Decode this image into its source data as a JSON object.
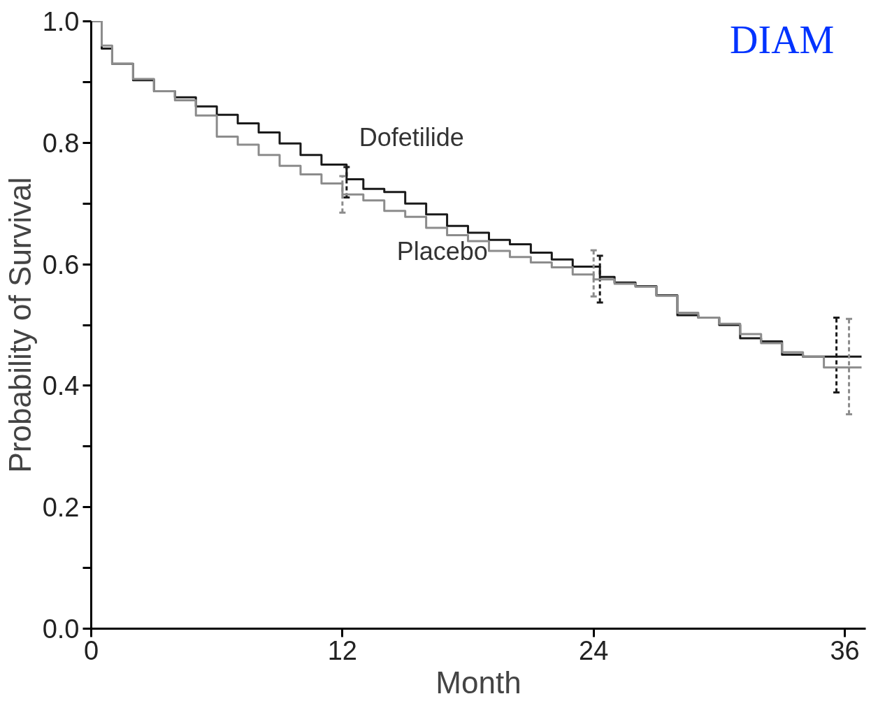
{
  "chart_data": {
    "type": "step",
    "xlabel": "Month",
    "ylabel": "Probability of Survival",
    "xlim": [
      0,
      37
    ],
    "ylim": [
      0,
      1.0
    ],
    "xticks": [
      0,
      12,
      24,
      36
    ],
    "yticks": [
      {
        "value": 0,
        "label": "0.0"
      },
      {
        "value": 0.1,
        "label": null
      },
      {
        "value": 0.2,
        "label": "0.2"
      },
      {
        "value": 0.3,
        "label": null
      },
      {
        "value": 0.4,
        "label": "0.4"
      },
      {
        "value": 0.5,
        "label": null
      },
      {
        "value": 0.6,
        "label": "0.6"
      },
      {
        "value": 0.7,
        "label": null
      },
      {
        "value": 0.8,
        "label": "0.8"
      },
      {
        "value": 0.9,
        "label": null
      },
      {
        "value": 1.0,
        "label": "1.0"
      }
    ],
    "grid": false,
    "legend": false,
    "line_style": "solid",
    "marker": "none",
    "annotations": [
      "DIAM"
    ],
    "series": [
      {
        "name": "Dofetilide",
        "color": "#1a1a1a",
        "x": [
          0,
          0.5,
          1,
          2,
          3,
          4,
          5,
          6,
          7,
          8,
          9,
          10,
          11,
          12.2,
          13,
          14,
          15,
          16,
          17,
          18,
          19,
          20,
          21,
          22,
          23,
          24.3,
          25,
          26,
          27,
          28,
          29,
          30,
          31,
          32,
          33,
          34,
          35.6,
          36.8
        ],
        "values": [
          1.0,
          0.955,
          0.93,
          0.903,
          0.885,
          0.875,
          0.86,
          0.846,
          0.832,
          0.817,
          0.799,
          0.78,
          0.764,
          0.74,
          0.724,
          0.719,
          0.7,
          0.682,
          0.663,
          0.652,
          0.64,
          0.633,
          0.619,
          0.608,
          0.596,
          0.579,
          0.57,
          0.564,
          0.549,
          0.516,
          0.512,
          0.5,
          0.478,
          0.473,
          0.451,
          0.448,
          0.448,
          0.448
        ],
        "errors": [
          null,
          null,
          null,
          null,
          null,
          null,
          null,
          null,
          null,
          null,
          null,
          null,
          null,
          [
            0.71,
            0.76
          ],
          null,
          null,
          null,
          null,
          null,
          null,
          null,
          null,
          null,
          null,
          null,
          [
            0.537,
            0.614
          ],
          null,
          null,
          null,
          null,
          null,
          null,
          null,
          null,
          null,
          null,
          [
            0.389,
            0.512
          ],
          null
        ]
      },
      {
        "name": "Placebo",
        "color": "#8c8c8c",
        "x": [
          0,
          0.5,
          1,
          2,
          3,
          4,
          5,
          6,
          7,
          8,
          9,
          10,
          11,
          12,
          13,
          14,
          15,
          16,
          17,
          18,
          19,
          20,
          21,
          22,
          23,
          24,
          25,
          26,
          27,
          28,
          29,
          30,
          31,
          32,
          33,
          34,
          35,
          36.2,
          36.8
        ],
        "values": [
          1.0,
          0.96,
          0.93,
          0.905,
          0.885,
          0.87,
          0.845,
          0.81,
          0.797,
          0.78,
          0.762,
          0.748,
          0.733,
          0.715,
          0.705,
          0.688,
          0.678,
          0.66,
          0.648,
          0.638,
          0.622,
          0.612,
          0.603,
          0.595,
          0.583,
          0.575,
          0.568,
          0.563,
          0.548,
          0.52,
          0.512,
          0.502,
          0.485,
          0.47,
          0.455,
          0.448,
          0.43,
          0.43,
          0.43
        ],
        "errors": [
          null,
          null,
          null,
          null,
          null,
          null,
          null,
          null,
          null,
          null,
          null,
          null,
          null,
          [
            0.685,
            0.745
          ],
          null,
          null,
          null,
          null,
          null,
          null,
          null,
          null,
          null,
          null,
          null,
          [
            0.547,
            0.623
          ],
          null,
          null,
          null,
          null,
          null,
          null,
          null,
          null,
          null,
          null,
          null,
          [
            0.353,
            0.51
          ],
          null
        ]
      }
    ]
  }
}
